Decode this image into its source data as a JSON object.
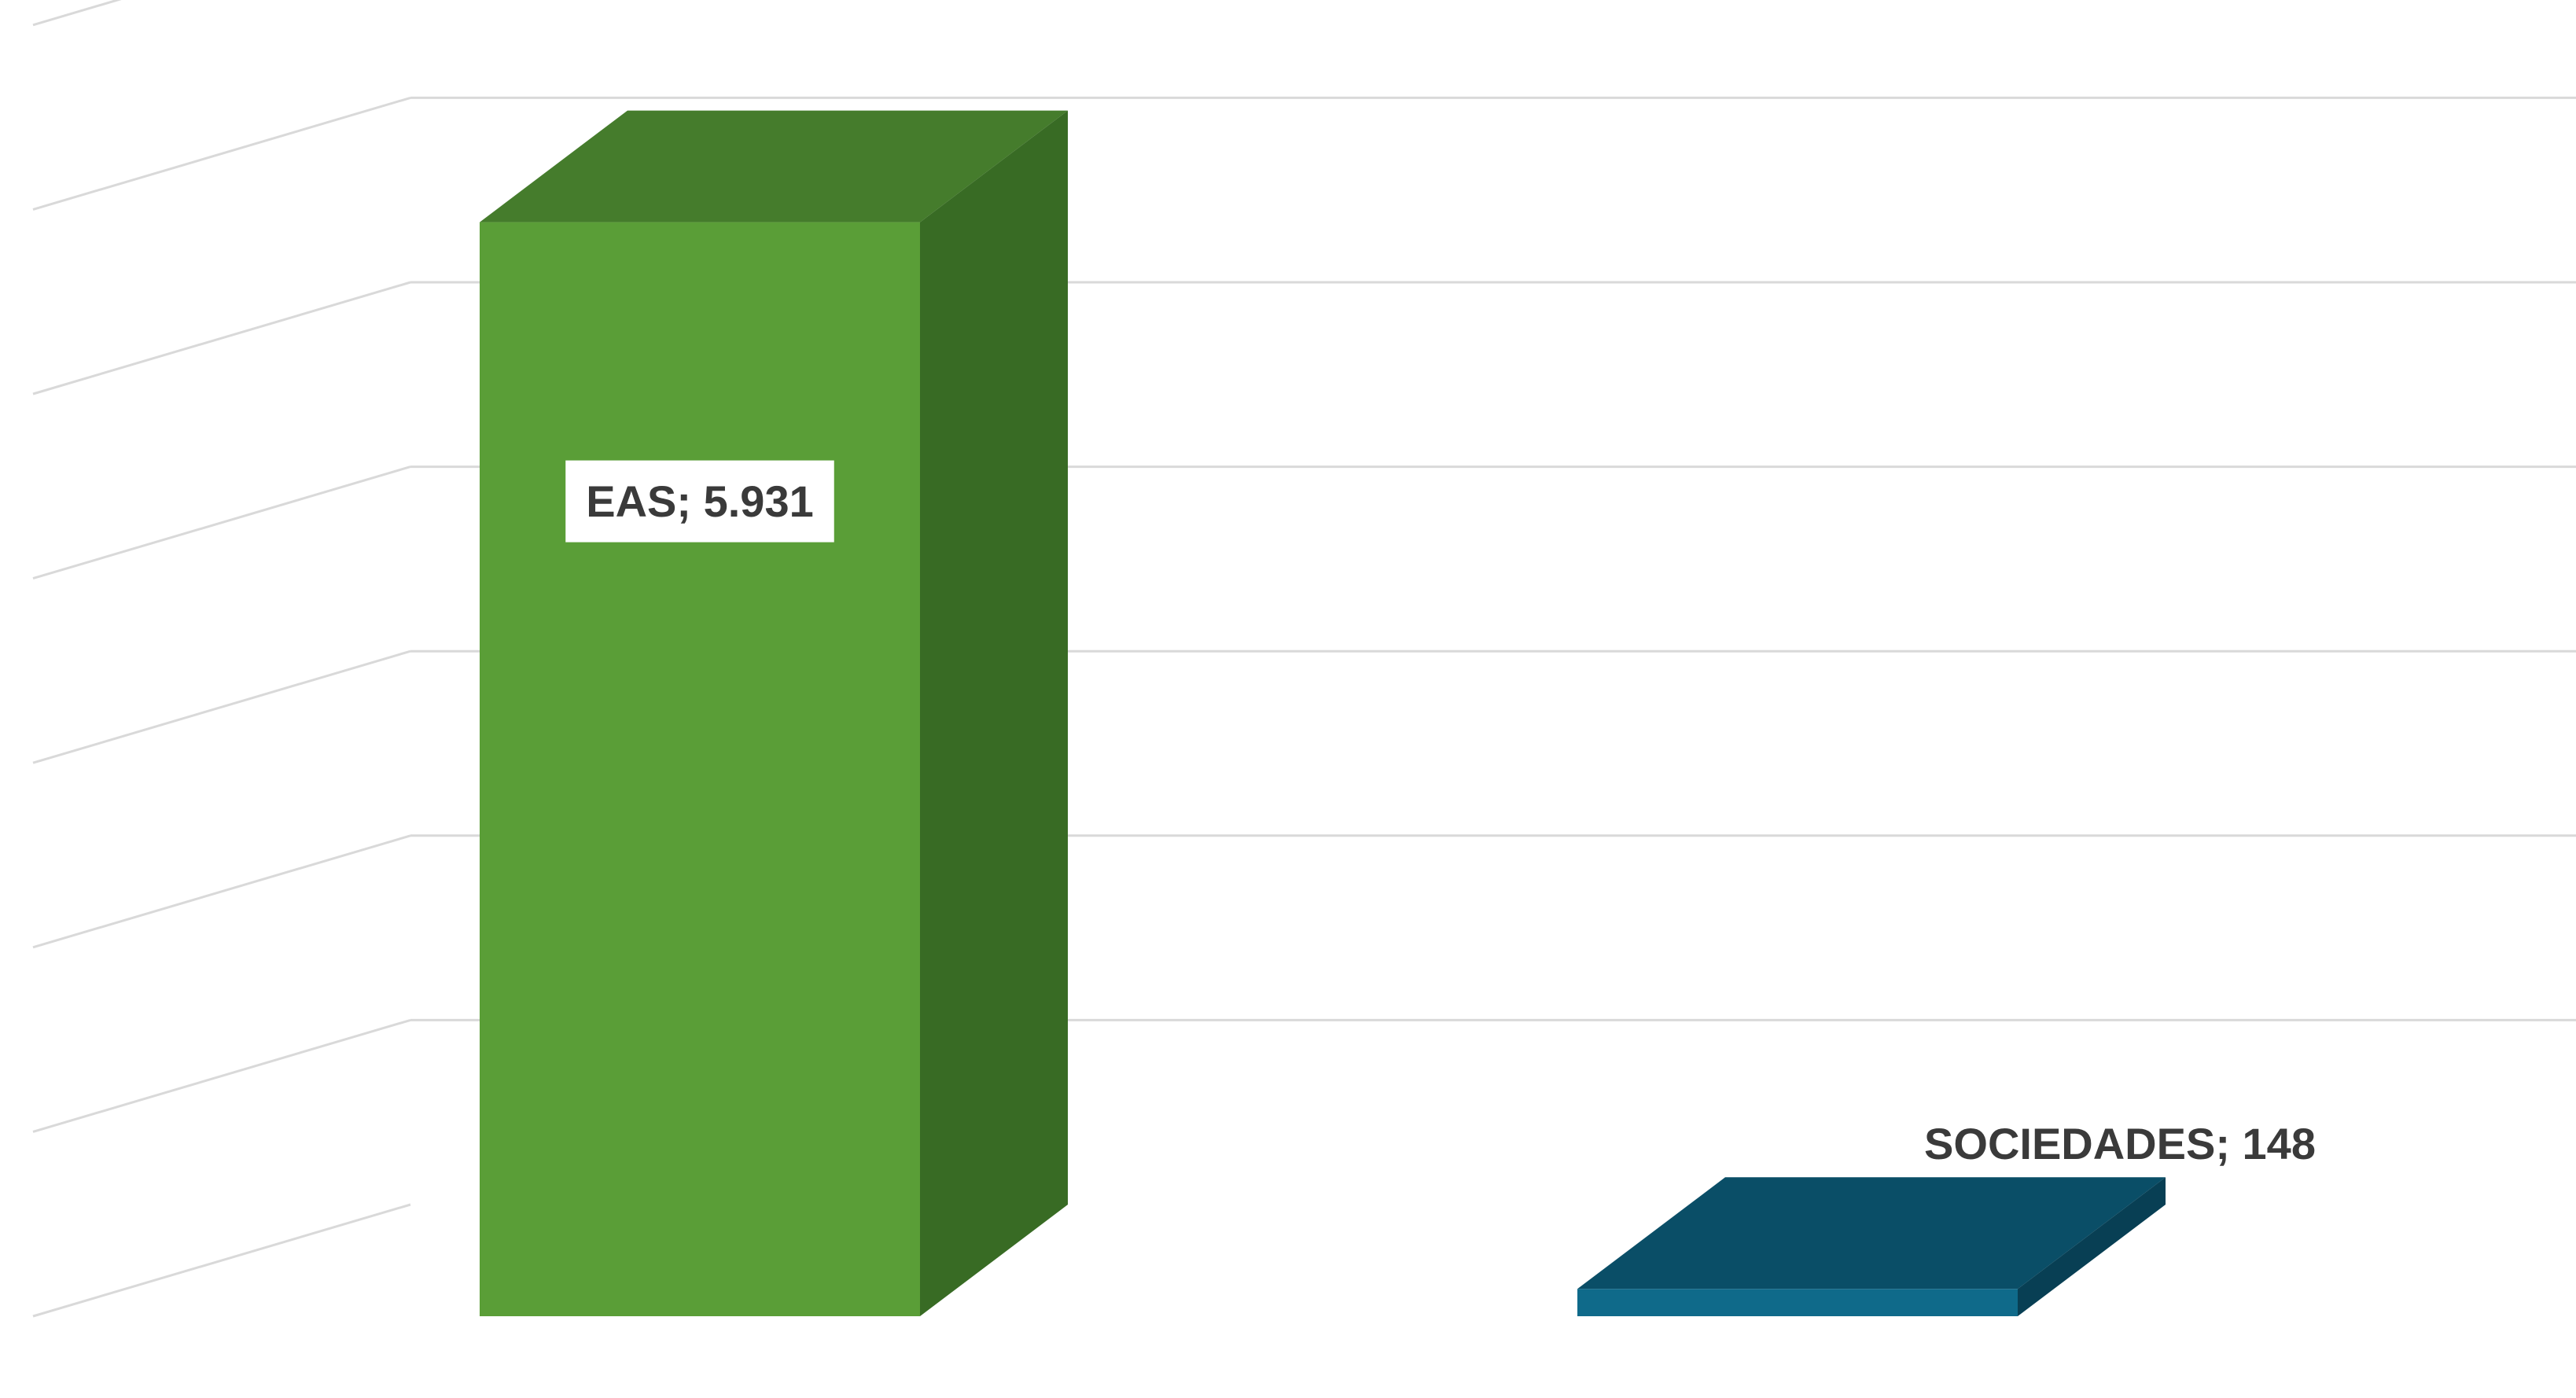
{
  "chart_data": {
    "type": "bar",
    "style": "3d-column",
    "categories": [
      "EAS",
      "SOCIEDADES"
    ],
    "values": [
      5931,
      148
    ],
    "data_labels": [
      "EAS; 5.931",
      "SOCIEDADES; 148"
    ],
    "ylim": [
      0,
      7000
    ],
    "gridlines": true,
    "legend": "none",
    "colors": {
      "EAS": {
        "front": "#5a9e37",
        "top": "#457c2c",
        "side": "#386b24"
      },
      "SOCIEDADES": {
        "front": "#0f6a8a",
        "top": "#0a4e67",
        "side": "#083f54"
      },
      "grid": "#d9d9d9",
      "label_box": "#ffffff"
    }
  }
}
